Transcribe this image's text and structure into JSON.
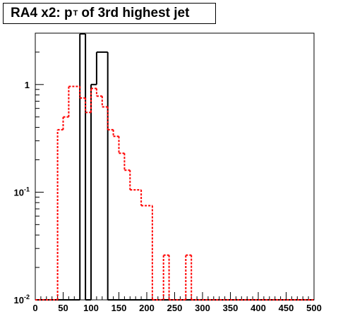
{
  "title": {
    "main": "RA4 x2: p",
    "subscript": "T",
    "rest": "of 3rd highest jet"
  },
  "chart_data": {
    "type": "histogram",
    "xlim": [
      0,
      500
    ],
    "ylim": [
      0.01,
      3
    ],
    "yscale": "log",
    "grid": false,
    "legend": "none",
    "x_tick_labels": [
      "0",
      "50",
      "100",
      "150",
      "200",
      "250",
      "300",
      "350",
      "400",
      "450",
      "500"
    ],
    "y_tick_labels": [
      {
        "base": "10",
        "exp": "-2",
        "value": 0.01
      },
      {
        "base": "10",
        "exp": "-1",
        "value": 0.1
      },
      {
        "base": "1",
        "exp": "",
        "value": 1
      }
    ],
    "series": [
      {
        "style": "solid",
        "color": "#000000",
        "bins": [
          {
            "x0": 0,
            "x1": 80,
            "y": 0.01
          },
          {
            "x0": 80,
            "x1": 90,
            "y": 3
          },
          {
            "x0": 90,
            "x1": 100,
            "y": 0.01
          },
          {
            "x0": 100,
            "x1": 110,
            "y": 1
          },
          {
            "x0": 110,
            "x1": 130,
            "y": 2
          },
          {
            "x0": 130,
            "x1": 500,
            "y": 0.01
          }
        ]
      },
      {
        "style": "dotted",
        "color": "#ff0000",
        "bins": [
          {
            "x0": 0,
            "x1": 40,
            "y": 0.01
          },
          {
            "x0": 40,
            "x1": 50,
            "y": 0.38
          },
          {
            "x0": 50,
            "x1": 60,
            "y": 0.5
          },
          {
            "x0": 60,
            "x1": 80,
            "y": 0.96
          },
          {
            "x0": 80,
            "x1": 90,
            "y": 0.75
          },
          {
            "x0": 90,
            "x1": 100,
            "y": 0.55
          },
          {
            "x0": 100,
            "x1": 110,
            "y": 0.92
          },
          {
            "x0": 110,
            "x1": 120,
            "y": 0.78
          },
          {
            "x0": 120,
            "x1": 130,
            "y": 0.62
          },
          {
            "x0": 130,
            "x1": 140,
            "y": 0.38
          },
          {
            "x0": 140,
            "x1": 150,
            "y": 0.33
          },
          {
            "x0": 150,
            "x1": 160,
            "y": 0.23
          },
          {
            "x0": 160,
            "x1": 170,
            "y": 0.16
          },
          {
            "x0": 170,
            "x1": 190,
            "y": 0.105
          },
          {
            "x0": 190,
            "x1": 210,
            "y": 0.075
          },
          {
            "x0": 210,
            "x1": 230,
            "y": 0.01
          },
          {
            "x0": 230,
            "x1": 240,
            "y": 0.026
          },
          {
            "x0": 240,
            "x1": 270,
            "y": 0.01
          },
          {
            "x0": 270,
            "x1": 280,
            "y": 0.026
          },
          {
            "x0": 280,
            "x1": 500,
            "y": 0.01
          }
        ]
      }
    ]
  }
}
